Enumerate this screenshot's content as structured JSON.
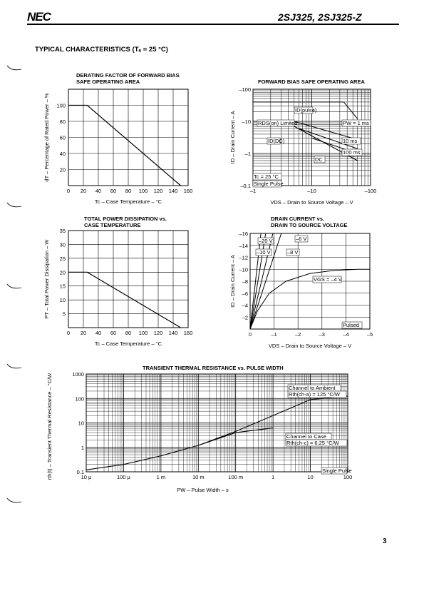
{
  "header": {
    "logo": "NEC",
    "part": "2SJ325, 2SJ325-Z"
  },
  "section_title": "TYPICAL CHARACTERISTICS (Tₐ = 25 °C)",
  "page_number": "3",
  "chart_data": [
    {
      "id": "derating",
      "type": "line",
      "title": "DERATING FACTOR OF FORWARD BIAS SAFE OPERATING AREA",
      "title_lines": [
        "DERATING FACTOR OF FORWARD BIAS",
        "SAFE OPERATING AREA"
      ],
      "xlabel": "Tc – Case Temperature – °C",
      "ylabel": "dT – Percentage of Rated Power – %",
      "xlim": [
        0,
        160
      ],
      "ylim": [
        0,
        120
      ],
      "xticks": [
        0,
        20,
        40,
        60,
        80,
        100,
        120,
        140,
        160
      ],
      "xtick_labels": [
        "0",
        "20",
        "40",
        "60",
        "80",
        "100",
        "120",
        "140",
        "160"
      ],
      "yticks": [
        20,
        40,
        60,
        80,
        100
      ],
      "ytick_labels": [
        "20",
        "40",
        "60",
        "80",
        "100"
      ],
      "series": [
        {
          "x": [
            0,
            25,
            150
          ],
          "y": [
            100,
            100,
            0
          ]
        }
      ]
    },
    {
      "id": "power",
      "type": "line",
      "title": "TOTAL POWER DISSIPATION vs. CASE TEMPERATURE",
      "title_lines": [
        "TOTAL POWER DISSIPATION vs.",
        "CASE TEMPERATURE"
      ],
      "xlabel": "Tc – Case Temperature – °C",
      "ylabel": "PT – Total Power Dissipation – W",
      "xlim": [
        0,
        160
      ],
      "ylim": [
        0,
        35
      ],
      "xticks": [
        0,
        20,
        40,
        60,
        80,
        100,
        120,
        140,
        160
      ],
      "xtick_labels": [
        "0",
        "20",
        "40",
        "60",
        "80",
        "100",
        "120",
        "140",
        "160"
      ],
      "yticks": [
        5,
        10,
        15,
        20,
        25,
        30,
        35
      ],
      "ytick_labels": [
        "5",
        "10",
        "15",
        "20",
        "25",
        "30",
        "35"
      ],
      "series": [
        {
          "x": [
            0,
            25,
            150
          ],
          "y": [
            20,
            20,
            0
          ]
        }
      ]
    },
    {
      "id": "fbsoa",
      "type": "line",
      "title": "FORWARD BIAS SAFE OPERATING AREA",
      "xlabel": "VDS – Drain to Source Voltage – V",
      "ylabel": "ID – Drain Current – A",
      "xscale": "log",
      "yscale": "log",
      "xlim": [
        -1,
        -100
      ],
      "ylim": [
        -0.1,
        -100
      ],
      "xtick_labels": [
        "–1",
        "–10",
        "–100"
      ],
      "ytick_labels": [
        "–0.1",
        "–1",
        "–10",
        "–100"
      ],
      "annotations": [
        "ID(pulse)",
        "RDS(on) Limited",
        "ID(DC)",
        "PW = 1 ms",
        "10 ms",
        "100 ms",
        "DC",
        "Tc = 25 °C",
        "Single Pulse"
      ],
      "series": [
        {
          "x": [
            -1,
            -3.5
          ],
          "y": [
            -10,
            -10
          ]
        },
        {
          "x": [
            -1,
            -3.5
          ],
          "y": [
            -40,
            -40
          ]
        },
        {
          "x": [
            -3.5,
            -35
          ],
          "y": [
            -40,
            -40
          ]
        },
        {
          "x": [
            -35,
            -60
          ],
          "y": [
            -40,
            -12
          ]
        },
        {
          "x": [
            -5,
            -60
          ],
          "y": [
            -10,
            -2.7
          ]
        },
        {
          "x": [
            -6,
            -60
          ],
          "y": [
            -6,
            -1.4
          ]
        },
        {
          "x": [
            -10,
            -60
          ],
          "y": [
            -3,
            -1
          ]
        },
        {
          "x": [
            -3.5,
            -60
          ],
          "y": [
            -10,
            -0.6
          ]
        }
      ]
    },
    {
      "id": "drain",
      "type": "line",
      "title": "DRAIN CURRENT vs. DRAIN TO SOURCE VOLTAGE",
      "title_lines": [
        "DRAIN CURRENT vs.",
        "DRAIN TO SOURCE VOLTAGE"
      ],
      "xlabel": "VDS – Drain to Source Voltage – V",
      "ylabel": "ID – Drain Current – A",
      "xlim": [
        0,
        -5
      ],
      "ylim": [
        0,
        -16
      ],
      "xticks": [
        0,
        -1,
        -2,
        -3,
        -4,
        -5
      ],
      "xtick_labels": [
        "0",
        "–1",
        "–2",
        "–3",
        "–4",
        "–5"
      ],
      "yticks": [
        -2,
        -4,
        -6,
        -8,
        -10,
        -12,
        -14,
        -16
      ],
      "ytick_labels": [
        "–2",
        "–4",
        "–6",
        "–8",
        "–10",
        "–12",
        "–14",
        "–16"
      ],
      "annotations": [
        "–20 V",
        "–10 V",
        "–8 V",
        "–6 V",
        "VGS = –4 V",
        "Pulsed"
      ],
      "series": [
        {
          "name": "–20 V",
          "x": [
            0,
            -0.45
          ],
          "y": [
            0,
            -16
          ]
        },
        {
          "name": "–10 V",
          "x": [
            0,
            -0.65
          ],
          "y": [
            0,
            -16
          ]
        },
        {
          "name": "–8 V",
          "x": [
            0,
            -0.95
          ],
          "y": [
            0,
            -16
          ]
        },
        {
          "name": "–6 V",
          "x": [
            0,
            -1.3
          ],
          "y": [
            0,
            -16
          ]
        },
        {
          "name": "VGS = –4 V",
          "x": [
            0,
            -0.3,
            -0.8,
            -1.5,
            -2.5,
            -3.5,
            -4.5,
            -5
          ],
          "y": [
            0,
            -3,
            -6,
            -8,
            -9.3,
            -9.8,
            -10,
            -10
          ]
        }
      ]
    },
    {
      "id": "thermal",
      "type": "line",
      "title": "TRANSIENT THERMAL RESISTANCE vs. PULSE WIDTH",
      "xlabel": "PW – Pulse Width – s",
      "ylabel": "rth(t) – Transient Thermal Resistance – °C/W",
      "xscale": "log",
      "yscale": "log",
      "xlim": [
        1e-05,
        100
      ],
      "ylim": [
        0.1,
        1000
      ],
      "xtick_labels": [
        "10 μ",
        "100 μ",
        "1 m",
        "10 m",
        "100 m",
        "1",
        "10",
        "100"
      ],
      "ytick_labels": [
        "0.1",
        "1",
        "10",
        "100",
        "1000"
      ],
      "annotations": [
        "Channel to Ambient",
        "Rth(ch-a) = 125 °C/W",
        "Channel to Case",
        "Rth(ch-c) = 6.25 °C/W",
        "Single Pulse"
      ],
      "series": [
        {
          "name": "Channel to Ambient",
          "x": [
            1e-05,
            0.0001,
            0.001,
            0.01,
            0.1,
            1,
            10,
            100
          ],
          "y": [
            0.12,
            0.2,
            0.45,
            1.2,
            4.5,
            20,
            90,
            125
          ]
        },
        {
          "name": "Channel to Case",
          "x": [
            0.01,
            0.1,
            1
          ],
          "y": [
            1.2,
            4,
            6.25
          ]
        }
      ]
    }
  ]
}
